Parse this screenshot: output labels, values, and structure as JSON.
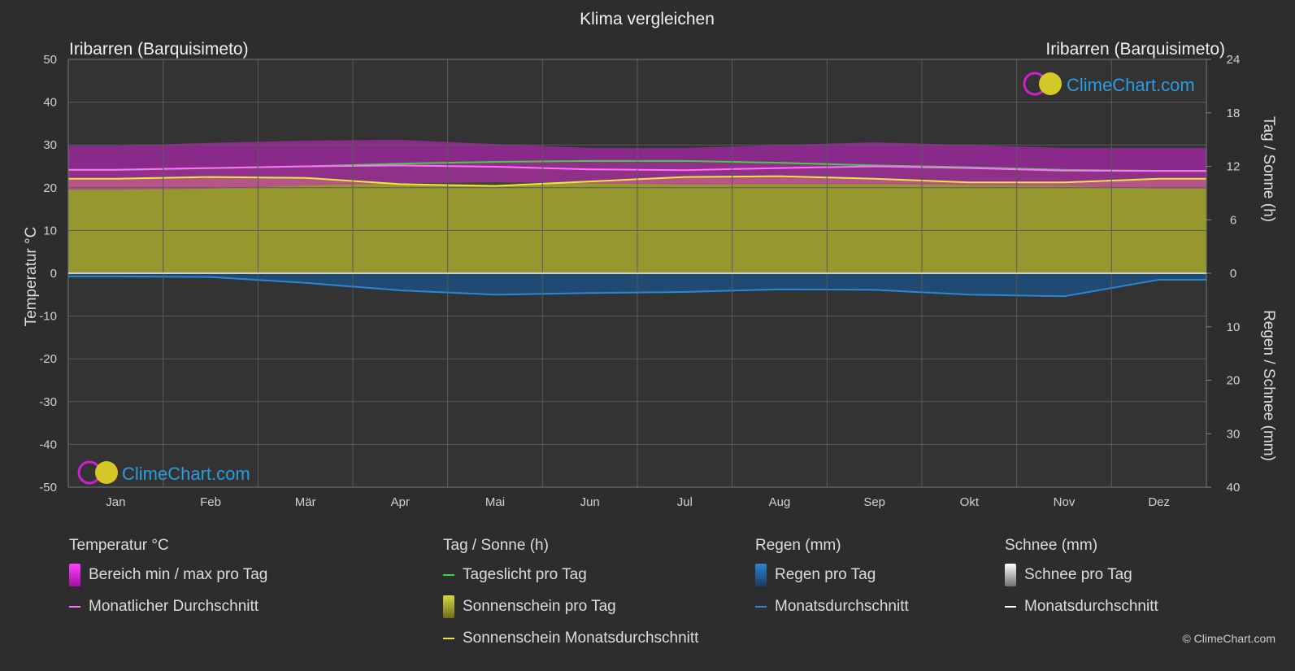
{
  "title": "Klima vergleichen",
  "location_left": "Iribarren (Barquisimeto)",
  "location_right": "Iribarren (Barquisimeto)",
  "brand": "ClimeChart.com",
  "copyright": "© ClimeChart.com",
  "colors": {
    "background": "#2d2d2d",
    "temp_range": "#d020d0",
    "temp_avg": "#ff70ff",
    "daylight": "#40d040",
    "sunshine_fill": "#b8b830",
    "sunshine_avg": "#e8e840",
    "rain": "#2a86d8",
    "snow": "#ffffff",
    "brand_blue": "#2a9de0"
  },
  "legend": {
    "temperature": {
      "heading": "Temperatur °C",
      "range_label": "Bereich min / max pro Tag",
      "avg_label": "Monatlicher Durchschnitt"
    },
    "sun": {
      "heading": "Tag / Sonne (h)",
      "daylight_label": "Tageslicht pro Tag",
      "sunshine_label": "Sonnenschein pro Tag",
      "sunshine_avg_label": "Sonnenschein Monatsdurchschnitt"
    },
    "rain": {
      "heading": "Regen (mm)",
      "rain_label": "Regen pro Tag",
      "avg_label": "Monatsdurchschnitt"
    },
    "snow": {
      "heading": "Schnee (mm)",
      "snow_label": "Schnee pro Tag",
      "avg_label": "Monatsdurchschnitt"
    }
  },
  "chart_data": {
    "type": "area",
    "title": "Klima vergleichen",
    "categories": [
      "Jan",
      "Feb",
      "Mär",
      "Apr",
      "Mai",
      "Jun",
      "Jul",
      "Aug",
      "Sep",
      "Okt",
      "Nov",
      "Dez"
    ],
    "y_left": {
      "label": "Temperatur °C",
      "range": [
        -50,
        50
      ],
      "ticks": [
        50,
        40,
        30,
        20,
        10,
        0,
        -10,
        -20,
        -30,
        -40,
        -50
      ]
    },
    "y_right_top": {
      "label": "Tag / Sonne (h)",
      "range": [
        0,
        24
      ],
      "ticks": [
        24,
        18,
        12,
        6,
        0
      ]
    },
    "y_right_bottom": {
      "label": "Regen / Schnee (mm)",
      "range": [
        0,
        40
      ],
      "ticks": [
        0,
        10,
        20,
        30,
        40
      ]
    },
    "grid": true,
    "series": [
      {
        "name": "Bereich min / max pro Tag",
        "kind": "range",
        "min": [
          19.5,
          19.8,
          20.5,
          21.0,
          21.3,
          21.0,
          20.7,
          20.8,
          20.8,
          20.6,
          20.4,
          19.8
        ],
        "max": [
          29.8,
          30.5,
          31.0,
          31.2,
          30.2,
          29.3,
          29.3,
          30.0,
          30.6,
          30.0,
          29.3,
          29.3
        ]
      },
      {
        "name": "Monatlicher Durchschnitt",
        "kind": "line",
        "values": [
          24.2,
          24.6,
          25.0,
          25.2,
          24.9,
          24.3,
          24.1,
          24.6,
          25.0,
          24.6,
          24.0,
          23.9
        ]
      },
      {
        "name": "Tageslicht pro Tag",
        "kind": "line",
        "values": [
          11.6,
          11.8,
          12.0,
          12.3,
          12.5,
          12.6,
          12.6,
          12.4,
          12.1,
          11.9,
          11.6,
          11.5
        ]
      },
      {
        "name": "Sonnenschein pro Tag",
        "kind": "area",
        "values": [
          10.6,
          10.8,
          10.7,
          10.0,
          9.8,
          10.3,
          10.8,
          10.9,
          10.6,
          10.2,
          10.2,
          10.6
        ]
      },
      {
        "name": "Sonnenschein Monatsdurchschnitt",
        "kind": "line",
        "values": [
          10.6,
          10.8,
          10.7,
          10.0,
          9.8,
          10.3,
          10.8,
          10.9,
          10.6,
          10.2,
          10.2,
          10.6
        ]
      },
      {
        "name": "Regen pro Tag",
        "kind": "area",
        "values": [
          0.6,
          0.7,
          1.8,
          3.2,
          4.0,
          3.7,
          3.5,
          3.0,
          3.1,
          4.0,
          4.3,
          1.2
        ]
      },
      {
        "name": "Monatsdurchschnitt",
        "kind": "line",
        "values": [
          0.6,
          0.7,
          1.8,
          3.2,
          4.0,
          3.7,
          3.5,
          3.0,
          3.1,
          4.0,
          4.3,
          1.2
        ]
      }
    ]
  }
}
